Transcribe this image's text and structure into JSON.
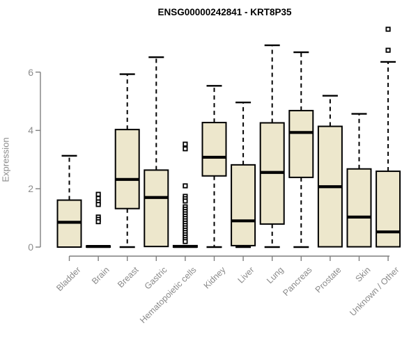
{
  "chart_data": {
    "type": "boxplot",
    "title": "ENSG00000242841 - KRT8P35",
    "xlabel": "",
    "ylabel": "Expression",
    "ylim": [
      0,
      7.6
    ],
    "yticks": [
      0,
      2,
      4,
      6
    ],
    "grid": false,
    "legend": "none",
    "categories": [
      "Bladder",
      "Brain",
      "Breast",
      "Gastric",
      "Hematopoietic cells",
      "Kidney",
      "Liver",
      "Lung",
      "Pancreas",
      "Prostate",
      "Skin",
      "Unknown / Other"
    ],
    "series": [
      {
        "name": "Bladder",
        "whisker_low": 0,
        "q1": 0.0,
        "median": 0.85,
        "q3": 1.61,
        "whisker_high": 3.13,
        "outliers": []
      },
      {
        "name": "Brain",
        "whisker_low": 0,
        "q1": 0.0,
        "median": 0.02,
        "q3": 0.04,
        "whisker_high": 0.05,
        "outliers": [
          1.81,
          1.67,
          1.55,
          1.46,
          1.03,
          0.95,
          0.87
        ]
      },
      {
        "name": "Breast",
        "whisker_low": 0,
        "q1": 1.32,
        "median": 2.32,
        "q3": 4.03,
        "whisker_high": 5.93,
        "outliers": []
      },
      {
        "name": "Gastric",
        "whisker_low": 0,
        "q1": 0.02,
        "median": 1.7,
        "q3": 2.64,
        "whisker_high": 6.51,
        "outliers": []
      },
      {
        "name": "Hematopoietic cells",
        "whisker_low": 0,
        "q1": 0.0,
        "median": 0.02,
        "q3": 0.05,
        "whisker_high": 0.07,
        "outliers": [
          3.53,
          3.37,
          2.1,
          1.74,
          1.66,
          1.58,
          1.38,
          1.3,
          1.22,
          1.14,
          1.06,
          0.98,
          0.9,
          0.82,
          0.74,
          0.66,
          0.58,
          0.5,
          0.42,
          0.34,
          0.26,
          0.19
        ]
      },
      {
        "name": "Kidney",
        "whisker_low": 0,
        "q1": 2.44,
        "median": 3.08,
        "q3": 4.27,
        "whisker_high": 5.53,
        "outliers": []
      },
      {
        "name": "Liver",
        "whisker_low": 0,
        "q1": 0.05,
        "median": 0.9,
        "q3": 2.82,
        "whisker_high": 4.96,
        "outliers": []
      },
      {
        "name": "Lung",
        "whisker_low": 0,
        "q1": 0.79,
        "median": 2.56,
        "q3": 4.26,
        "whisker_high": 6.92,
        "outliers": []
      },
      {
        "name": "Pancreas",
        "whisker_low": 0,
        "q1": 2.39,
        "median": 3.93,
        "q3": 4.68,
        "whisker_high": 6.68,
        "outliers": []
      },
      {
        "name": "Prostate",
        "whisker_low": 0,
        "q1": 0.01,
        "median": 2.07,
        "q3": 4.14,
        "whisker_high": 5.19,
        "outliers": []
      },
      {
        "name": "Skin",
        "whisker_low": 0,
        "q1": 0.01,
        "median": 1.03,
        "q3": 2.68,
        "whisker_high": 4.57,
        "outliers": []
      },
      {
        "name": "Unknown / Other",
        "whisker_low": 0,
        "q1": 0.01,
        "median": 0.52,
        "q3": 2.6,
        "whisker_high": 6.35,
        "outliers": [
          7.47,
          6.75
        ]
      }
    ],
    "colors": {
      "box_fill": "#EDE7CC",
      "box_border": "#000000",
      "median": "#000000",
      "whisker": "#000000",
      "outlier_fill": "#ffffff",
      "outlier_border": "#000000",
      "axis": "#7f7f7f",
      "tick_label": "#8c8c8c",
      "category_label": "#8a8a8a",
      "title": "#000000",
      "background": "#ffffff"
    }
  }
}
